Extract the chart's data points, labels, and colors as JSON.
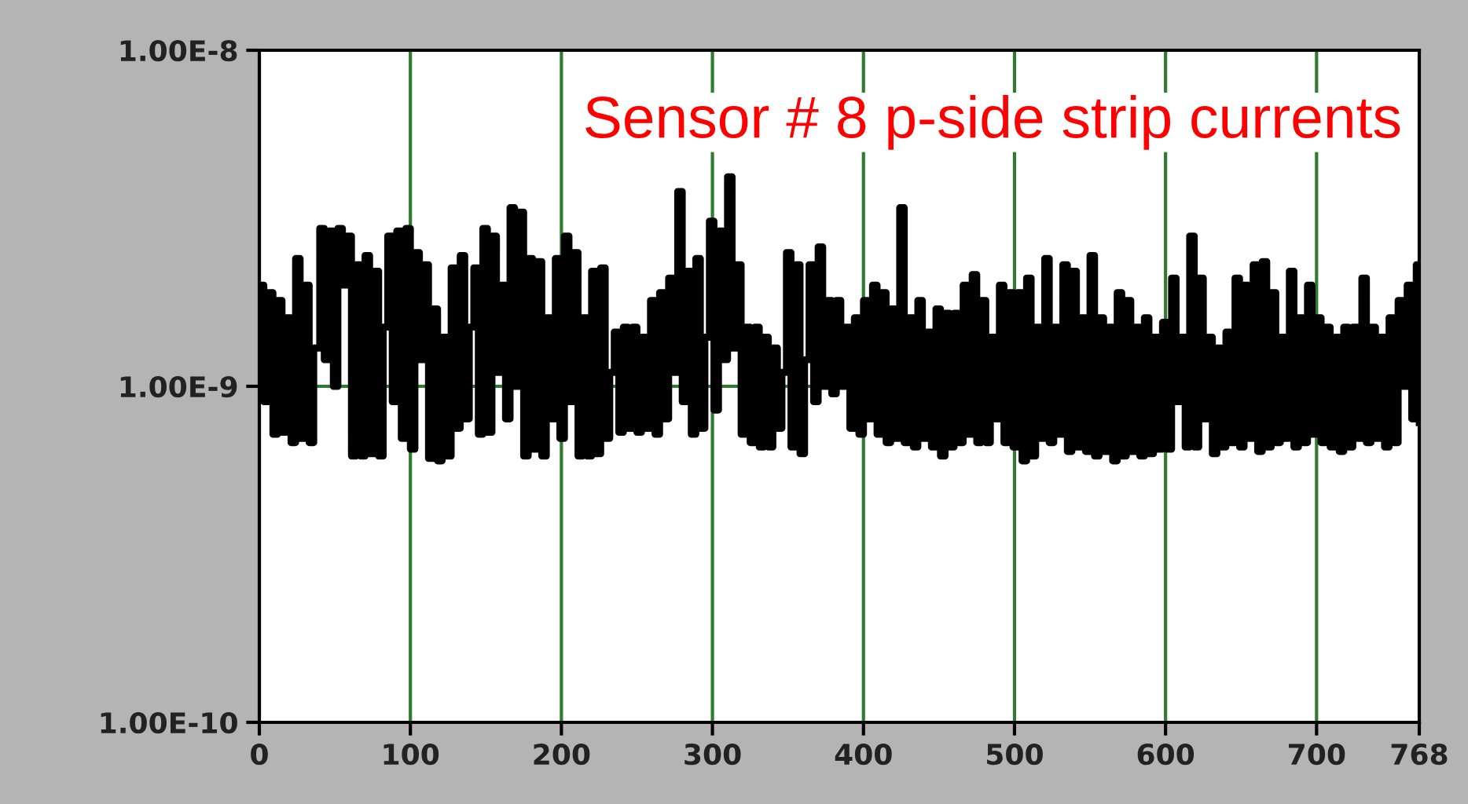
{
  "chart_data": {
    "type": "step",
    "title": "Sensor # 8 p-side strip currents",
    "x": [
      0,
      3,
      6,
      9,
      12,
      15,
      18,
      21,
      24,
      27,
      30,
      33,
      36,
      40,
      43,
      46,
      49,
      52,
      55,
      58,
      61,
      64,
      67,
      70,
      73,
      76,
      79,
      82,
      85,
      88,
      91,
      94,
      97,
      100,
      103,
      106,
      109,
      112,
      115,
      118,
      121,
      124,
      127,
      130,
      133,
      136,
      139,
      142,
      145,
      148,
      151,
      154,
      157,
      160,
      163,
      166,
      169,
      172,
      175,
      178,
      181,
      184,
      187,
      190,
      193,
      196,
      199,
      202,
      205,
      208,
      211,
      214,
      217,
      220,
      223,
      226,
      229,
      232,
      235,
      238,
      241,
      244,
      247,
      250,
      253,
      256,
      259,
      262,
      265,
      268,
      271,
      274,
      277,
      280,
      283,
      286,
      289,
      292,
      295,
      298,
      301,
      304,
      307,
      310,
      313,
      316,
      319,
      322,
      325,
      328,
      331,
      334,
      337,
      340,
      343,
      346,
      349,
      352,
      355,
      358,
      361,
      364,
      367,
      370,
      373,
      376,
      379,
      382,
      385,
      388,
      391,
      394,
      397,
      400,
      403,
      406,
      409,
      412,
      415,
      418,
      421,
      424,
      427,
      430,
      433,
      436,
      439,
      442,
      445,
      448,
      451,
      454,
      457,
      460,
      463,
      466,
      469,
      472,
      475,
      478,
      481,
      484,
      487,
      490,
      493,
      496,
      499,
      502,
      505,
      508,
      511,
      514,
      517,
      520,
      523,
      526,
      529,
      532,
      535,
      538,
      541,
      544,
      547,
      550,
      553,
      556,
      559,
      562,
      565,
      568,
      571,
      574,
      577,
      580,
      583,
      586,
      589,
      592,
      595,
      598,
      601,
      604,
      607,
      610,
      613,
      616,
      619,
      622,
      625,
      628,
      631,
      634,
      637,
      640,
      643,
      646,
      649,
      652,
      655,
      658,
      661,
      664,
      667,
      670,
      673,
      676,
      679,
      682,
      685,
      688,
      691,
      694,
      697,
      700,
      703,
      706,
      709,
      712,
      715,
      718,
      721,
      724,
      727,
      730,
      733,
      736,
      739,
      742,
      745,
      748,
      751,
      754,
      757,
      760,
      763,
      766,
      768
    ],
    "values": [
      2e-09,
      9e-10,
      1.9e-09,
      7.2e-10,
      1.8e-09,
      7.3e-10,
      1.6e-09,
      6.8e-10,
      2.4e-09,
      7e-10,
      2e-09,
      6.8e-10,
      1.3e-09,
      2.95e-09,
      1.2e-09,
      2.9e-09,
      1e-09,
      2.95e-09,
      2e-09,
      2.8e-09,
      6.2e-10,
      2.3e-09,
      6.2e-10,
      2.45e-09,
      6.3e-10,
      2.2e-09,
      6.2e-10,
      1.5e-09,
      2.8e-09,
      9e-10,
      2.9e-09,
      7e-10,
      2.95e-09,
      6.5e-10,
      2.5e-09,
      1.2e-09,
      2.3e-09,
      6.1e-10,
      1.7e-09,
      6e-10,
      1.4e-09,
      6.2e-10,
      2.25e-09,
      7.5e-10,
      2.45e-09,
      8e-10,
      1.5e-09,
      2.25e-09,
      7.2e-10,
      2.95e-09,
      7.3e-10,
      2.8e-09,
      1.1e-09,
      2e-09,
      8e-10,
      3.4e-09,
      1e-09,
      3.3e-09,
      6.2e-10,
      2.4e-09,
      6.5e-10,
      2.35e-09,
      6.2e-10,
      1.6e-09,
      8e-10,
      2.4e-09,
      7e-10,
      2.8e-09,
      9e-10,
      2.5e-09,
      6.2e-10,
      1.6e-09,
      6.2e-10,
      2.2e-09,
      6.3e-10,
      2.25e-09,
      7e-10,
      1.1e-09,
      1.45e-09,
      7.3e-10,
      1.5e-09,
      7.5e-10,
      1.5e-09,
      7.3e-10,
      1.4e-09,
      7.5e-10,
      1.8e-09,
      7.2e-10,
      1.9e-09,
      8e-10,
      2.1e-09,
      1.1e-09,
      3.8e-09,
      9e-10,
      2.2e-09,
      7.2e-10,
      2.4e-09,
      7.5e-10,
      1.4e-09,
      3.1e-09,
      8.5e-10,
      2.9e-09,
      1.2e-09,
      4.2e-09,
      1.3e-09,
      2.3e-09,
      7.2e-10,
      1.5e-09,
      6.8e-10,
      1.5e-09,
      6.6e-10,
      1.4e-09,
      6.6e-10,
      1.3e-09,
      7.5e-10,
      1.1e-09,
      2.5e-09,
      6.6e-10,
      2.3e-09,
      6.3e-10,
      1.2e-09,
      2.3e-09,
      9e-10,
      2.6e-09,
      1e-09,
      1.8e-09,
      9.5e-10,
      1.8e-09,
      1e-09,
      1.5e-09,
      7.5e-10,
      1.6e-09,
      7.2e-10,
      1.8e-09,
      8e-10,
      2e-09,
      7.2e-10,
      1.9e-09,
      6.8e-10,
      1.7e-09,
      7e-10,
      3.4e-09,
      6.8e-10,
      1.6e-09,
      6.6e-10,
      1.8e-09,
      7e-10,
      1.45e-09,
      6.6e-10,
      1.7e-09,
      6.2e-10,
      1.65e-09,
      6.6e-10,
      1.65e-09,
      6.8e-10,
      2e-09,
      7.2e-10,
      2.15e-09,
      6.8e-10,
      1.8e-09,
      6.8e-10,
      1.4e-09,
      8e-10,
      2e-09,
      6.8e-10,
      1.9e-09,
      6.6e-10,
      1.9e-09,
      6e-10,
      2.1e-09,
      6.2e-10,
      1.5e-09,
      7e-10,
      2.4e-09,
      6.8e-10,
      1.5e-09,
      7.2e-10,
      2.3e-09,
      6.4e-10,
      2.2e-09,
      6.6e-10,
      1.6e-09,
      6.4e-10,
      2.45e-09,
      6.2e-10,
      1.6e-09,
      6.4e-10,
      1.5e-09,
      6e-10,
      1.9e-09,
      6.2e-10,
      1.8e-09,
      6.4e-10,
      1.5e-09,
      6.2e-10,
      1.6e-09,
      6.3e-10,
      1.4e-09,
      6.5e-10,
      1.55e-09,
      6.5e-10,
      2.1e-09,
      9e-10,
      1.4e-09,
      6.6e-10,
      2.8e-09,
      6.6e-10,
      2.1e-09,
      8e-10,
      1.4e-09,
      6.3e-10,
      1.3e-09,
      6.6e-10,
      1.45e-09,
      6.8e-10,
      2.1e-09,
      6.6e-10,
      2e-09,
      7e-10,
      2.3e-09,
      6.4e-10,
      2.35e-09,
      6.6e-10,
      1.9e-09,
      6.8e-10,
      1.4e-09,
      7e-10,
      2.2e-09,
      6.6e-10,
      1.6e-09,
      6.8e-10,
      2e-09,
      7.2e-10,
      1.6e-09,
      6.8e-10,
      1.5e-09,
      6.6e-10,
      1.4e-09,
      6.4e-10,
      1.5e-09,
      6.6e-10,
      1.5e-09,
      7e-10,
      2.1e-09,
      6.8e-10,
      1.5e-09,
      7e-10,
      1.4e-09,
      6.6e-10,
      1.6e-09,
      6.8e-10,
      1.8e-09,
      1e-09,
      2e-09,
      8e-10,
      2.3e-09,
      7.8e-10
    ],
    "color": "#000000",
    "log": true,
    "xlim": [
      0,
      768
    ],
    "xticks": [
      0,
      100,
      200,
      300,
      400,
      500,
      600,
      700,
      768
    ],
    "ylim": [
      1e-10,
      1e-08
    ],
    "yticks": [
      {
        "value": 1e-10,
        "label": "1.00E-10"
      },
      {
        "value": 1e-09,
        "label": "1.00E-9"
      },
      {
        "value": 1e-08,
        "label": "1.00E-8"
      }
    ],
    "grid": true
  }
}
